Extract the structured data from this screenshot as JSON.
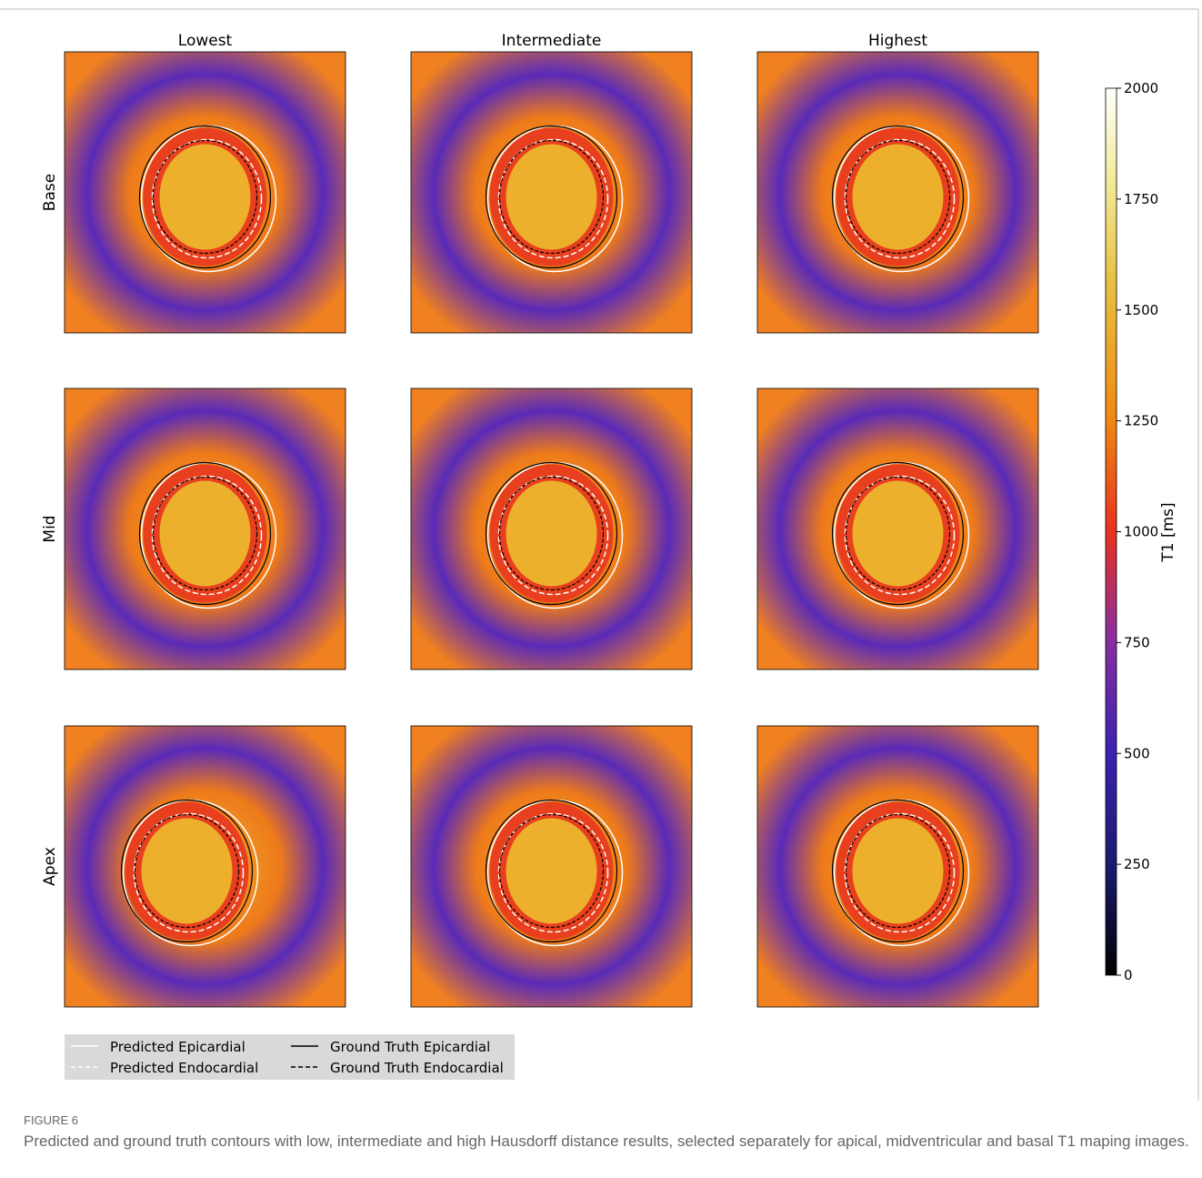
{
  "columns": [
    "Lowest",
    "Intermediate",
    "Highest"
  ],
  "rows": [
    "Base",
    "Mid",
    "Apex"
  ],
  "colorbar": {
    "label": "T1 [ms]",
    "lim": [
      0,
      2000
    ],
    "ticks": [
      0,
      250,
      500,
      750,
      1000,
      1250,
      1500,
      1750,
      2000
    ]
  },
  "legend": [
    "Predicted Epicardial",
    "Predicted Endocardial",
    "Ground Truth Epicardial",
    "Ground Truth Endocardial"
  ],
  "caption": {
    "label": "FIGURE 6",
    "text": "Predicted and ground truth contours with low, intermediate and high Hausdorff distance results, selected separately for apical, midventricular and basal T1 maping images."
  }
}
